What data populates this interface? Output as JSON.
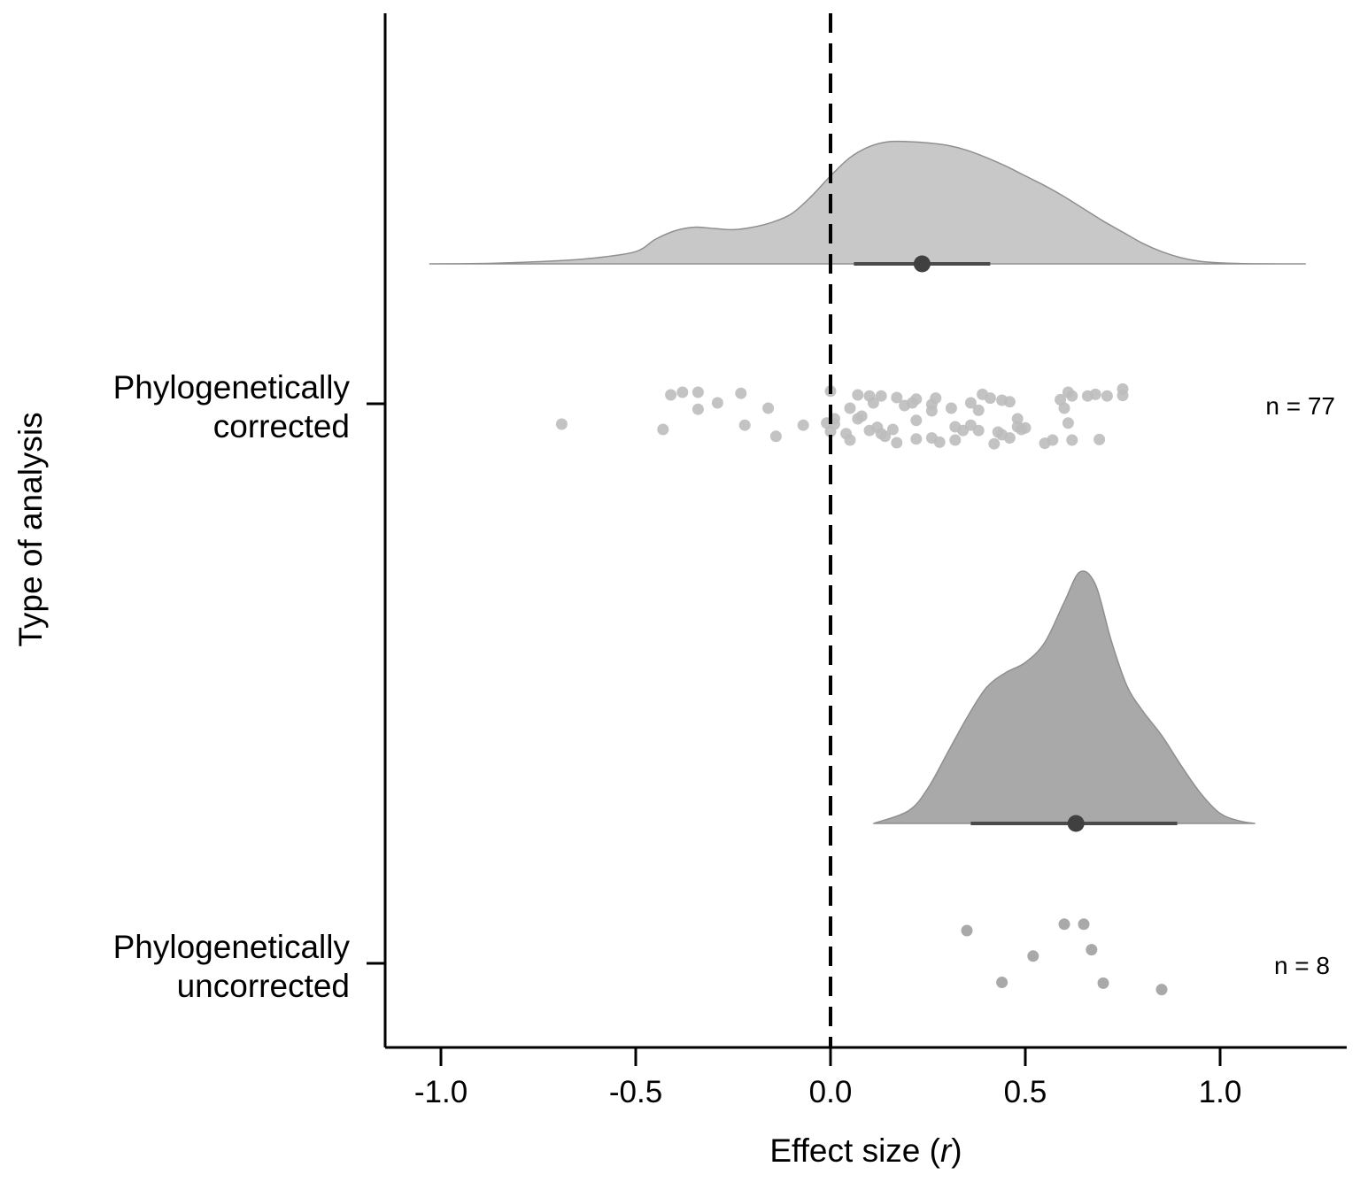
{
  "chart_data": {
    "type": "raincloud",
    "xlabel_prefix": "Effect size (",
    "xlabel_var": "r",
    "xlabel_suffix": ")",
    "ylabel": "Type of analysis",
    "xlim": [
      -1.15,
      1.35
    ],
    "x_ticks": [
      -1.0,
      -0.5,
      0.0,
      0.5,
      1.0
    ],
    "x_tick_labels": [
      "-1.0",
      "-0.5",
      "0.0",
      "0.5",
      "1.0"
    ],
    "reference_line": {
      "x": 0.0,
      "style": "dashed"
    },
    "groups": [
      {
        "name_line1": "Phylogenetically",
        "name_line2": "corrected",
        "n_label": "n = 77",
        "color": "#c8c8c8",
        "point_color": "#bdbdbd",
        "density": {
          "x": [
            -1.03,
            -0.9,
            -0.8,
            -0.7,
            -0.6,
            -0.5,
            -0.45,
            -0.4,
            -0.35,
            -0.3,
            -0.25,
            -0.2,
            -0.15,
            -0.1,
            -0.05,
            0.0,
            0.05,
            0.1,
            0.15,
            0.2,
            0.25,
            0.3,
            0.35,
            0.4,
            0.45,
            0.5,
            0.55,
            0.6,
            0.65,
            0.7,
            0.75,
            0.8,
            0.85,
            0.9,
            0.95,
            1.0,
            1.05,
            1.1,
            1.22
          ],
          "y": [
            0.0,
            0.003,
            0.012,
            0.025,
            0.05,
            0.1,
            0.2,
            0.27,
            0.3,
            0.29,
            0.28,
            0.3,
            0.34,
            0.41,
            0.55,
            0.72,
            0.87,
            0.96,
            1.0,
            1.0,
            0.99,
            0.97,
            0.93,
            0.87,
            0.8,
            0.72,
            0.64,
            0.55,
            0.45,
            0.35,
            0.26,
            0.17,
            0.1,
            0.05,
            0.02,
            0.008,
            0.003,
            0.001,
            0.0
          ]
        },
        "mean": 0.235,
        "ci": [
          0.06,
          0.41
        ],
        "points": [
          {
            "r": -0.69,
            "j": 0.4
          },
          {
            "r": -0.43,
            "j": 0.5
          },
          {
            "r": -0.41,
            "j": -0.15
          },
          {
            "r": -0.38,
            "j": -0.2
          },
          {
            "r": -0.34,
            "j": -0.2
          },
          {
            "r": -0.34,
            "j": 0.12
          },
          {
            "r": -0.29,
            "j": 0.0
          },
          {
            "r": -0.23,
            "j": -0.18
          },
          {
            "r": -0.22,
            "j": 0.42
          },
          {
            "r": -0.16,
            "j": 0.1
          },
          {
            "r": -0.14,
            "j": 0.63
          },
          {
            "r": -0.07,
            "j": 0.42
          },
          {
            "r": -0.01,
            "j": 0.38
          },
          {
            "r": 0.0,
            "j": -0.22
          },
          {
            "r": 0.0,
            "j": 0.54
          },
          {
            "r": 0.01,
            "j": 0.3
          },
          {
            "r": 0.01,
            "j": 0.4
          },
          {
            "r": 0.04,
            "j": 0.58
          },
          {
            "r": 0.05,
            "j": 0.1
          },
          {
            "r": 0.05,
            "j": 0.7
          },
          {
            "r": 0.07,
            "j": -0.15
          },
          {
            "r": 0.07,
            "j": 0.3
          },
          {
            "r": 0.08,
            "j": 0.25
          },
          {
            "r": 0.1,
            "j": -0.13
          },
          {
            "r": 0.1,
            "j": 0.52
          },
          {
            "r": 0.11,
            "j": 0.0
          },
          {
            "r": 0.12,
            "j": 0.46
          },
          {
            "r": 0.13,
            "j": -0.13
          },
          {
            "r": 0.13,
            "j": 0.58
          },
          {
            "r": 0.14,
            "j": 0.63
          },
          {
            "r": 0.16,
            "j": 0.5
          },
          {
            "r": 0.17,
            "j": -0.1
          },
          {
            "r": 0.17,
            "j": 0.75
          },
          {
            "r": 0.19,
            "j": 0.05
          },
          {
            "r": 0.21,
            "j": 0.0
          },
          {
            "r": 0.22,
            "j": -0.07
          },
          {
            "r": 0.22,
            "j": 0.33
          },
          {
            "r": 0.22,
            "j": 0.68
          },
          {
            "r": 0.26,
            "j": 0.15
          },
          {
            "r": 0.26,
            "j": 0.03
          },
          {
            "r": 0.26,
            "j": 0.66
          },
          {
            "r": 0.27,
            "j": -0.09
          },
          {
            "r": 0.28,
            "j": 0.74
          },
          {
            "r": 0.31,
            "j": 0.1
          },
          {
            "r": 0.32,
            "j": 0.45
          },
          {
            "r": 0.32,
            "j": 0.7
          },
          {
            "r": 0.34,
            "j": 0.52
          },
          {
            "r": 0.36,
            "j": 0.42
          },
          {
            "r": 0.36,
            "j": 0.0
          },
          {
            "r": 0.38,
            "j": 0.14
          },
          {
            "r": 0.38,
            "j": 0.52
          },
          {
            "r": 0.39,
            "j": -0.16
          },
          {
            "r": 0.41,
            "j": -0.09
          },
          {
            "r": 0.42,
            "j": 0.77
          },
          {
            "r": 0.43,
            "j": 0.55
          },
          {
            "r": 0.44,
            "j": 0.6
          },
          {
            "r": 0.44,
            "j": -0.05
          },
          {
            "r": 0.46,
            "j": -0.02
          },
          {
            "r": 0.46,
            "j": 0.66
          },
          {
            "r": 0.48,
            "j": 0.3
          },
          {
            "r": 0.48,
            "j": 0.45
          },
          {
            "r": 0.49,
            "j": 0.5
          },
          {
            "r": 0.5,
            "j": 0.47
          },
          {
            "r": 0.55,
            "j": 0.76
          },
          {
            "r": 0.57,
            "j": 0.7
          },
          {
            "r": 0.59,
            "j": -0.06
          },
          {
            "r": 0.6,
            "j": 0.1
          },
          {
            "r": 0.61,
            "j": -0.2
          },
          {
            "r": 0.61,
            "j": 0.38
          },
          {
            "r": 0.62,
            "j": 0.7
          },
          {
            "r": 0.62,
            "j": -0.13
          },
          {
            "r": 0.66,
            "j": -0.13
          },
          {
            "r": 0.68,
            "j": -0.16
          },
          {
            "r": 0.69,
            "j": 0.69
          },
          {
            "r": 0.71,
            "j": -0.13
          },
          {
            "r": 0.75,
            "j": -0.26
          },
          {
            "r": 0.75,
            "j": -0.14
          }
        ]
      },
      {
        "name_line1": "Phylogenetically",
        "name_line2": "uncorrected",
        "n_label": "n = 8",
        "color": "#a9a9a9",
        "point_color": "#a0a0a0",
        "density": {
          "x": [
            0.11,
            0.2,
            0.25,
            0.3,
            0.35,
            0.4,
            0.45,
            0.5,
            0.55,
            0.6,
            0.64,
            0.68,
            0.72,
            0.76,
            0.8,
            0.85,
            0.9,
            0.95,
            1.0,
            1.05,
            1.09
          ],
          "y": [
            0.0,
            0.05,
            0.14,
            0.28,
            0.42,
            0.54,
            0.6,
            0.64,
            0.72,
            0.88,
            1.0,
            0.95,
            0.73,
            0.55,
            0.45,
            0.35,
            0.23,
            0.12,
            0.04,
            0.01,
            0.0
          ]
        },
        "mean": 0.63,
        "ci": [
          0.36,
          0.89
        ],
        "points": [
          {
            "r": 0.35,
            "j": -0.4
          },
          {
            "r": 0.6,
            "j": -0.48
          },
          {
            "r": 0.65,
            "j": -0.48
          },
          {
            "r": 0.67,
            "j": -0.16
          },
          {
            "r": 0.52,
            "j": -0.08
          },
          {
            "r": 0.44,
            "j": 0.25
          },
          {
            "r": 0.7,
            "j": 0.26
          },
          {
            "r": 0.85,
            "j": 0.34
          }
        ]
      }
    ]
  }
}
